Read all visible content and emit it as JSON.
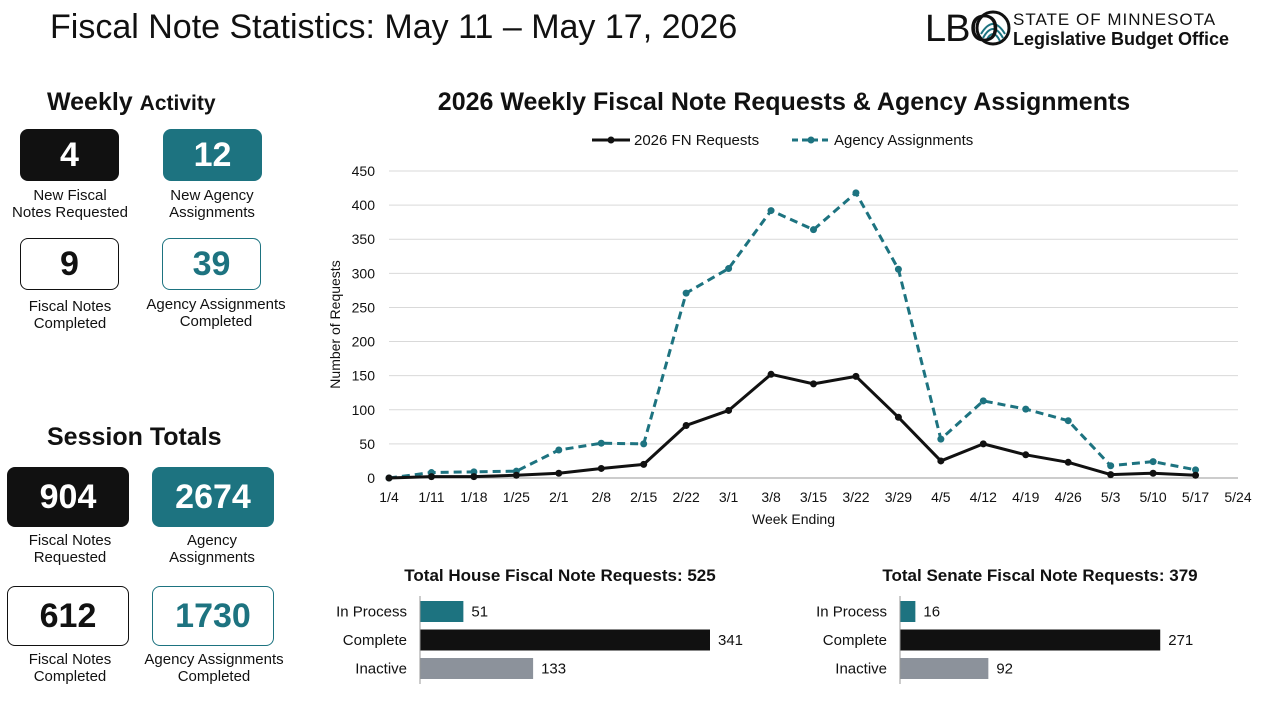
{
  "header": {
    "title": "Fiscal Note Statistics: May 11 – May 17, 2026",
    "logo_mark": "LBO",
    "logo_line1": "STATE OF MINNESOTA",
    "logo_line2": "Legislative Budget Office"
  },
  "weekly": {
    "title_main": "Weekly",
    "title_rest": "Activity",
    "tiles": [
      {
        "value": "4",
        "label": "New Fiscal\nNotes Requested"
      },
      {
        "value": "12",
        "label": "New Agency\nAssignments"
      },
      {
        "value": "9",
        "label": "Fiscal Notes\nCompleted"
      },
      {
        "value": "39",
        "label": "Agency Assignments\nCompleted"
      }
    ]
  },
  "session": {
    "title": "Session Totals",
    "tiles": [
      {
        "value": "904",
        "label": "Fiscal Notes\nRequested"
      },
      {
        "value": "2674",
        "label": "Agency\nAssignments"
      },
      {
        "value": "612",
        "label": "Fiscal Notes\nCompleted"
      },
      {
        "value": "1730",
        "label": "Agency Assignments\nCompleted"
      }
    ]
  },
  "colors": {
    "teal": "#1d7380",
    "black": "#111111",
    "gray": "#8c929b"
  },
  "chart_data": [
    {
      "type": "line",
      "title": "2026 Weekly Fiscal Note Requests & Agency Assignments",
      "xlabel": "Week Ending",
      "ylabel": "Number of Requests",
      "ylim": [
        0,
        450
      ],
      "yticks": [
        0,
        50,
        100,
        150,
        200,
        250,
        300,
        350,
        400,
        450
      ],
      "grid": true,
      "legend_position": "top",
      "x": [
        "1/4",
        "1/11",
        "1/18",
        "1/25",
        "2/1",
        "2/8",
        "2/15",
        "2/22",
        "3/1",
        "3/8",
        "3/15",
        "3/22",
        "3/29",
        "4/5",
        "4/12",
        "4/19",
        "4/26",
        "5/3",
        "5/10",
        "5/17",
        "5/24"
      ],
      "series": [
        {
          "name": "2026 FN Requests",
          "color": "#111111",
          "style": "solid",
          "values": [
            0,
            2,
            2,
            4,
            7,
            14,
            20,
            77,
            99,
            152,
            138,
            149,
            89,
            25,
            50,
            34,
            23,
            5,
            7,
            4,
            null
          ]
        },
        {
          "name": "Agency Assignments",
          "color": "#1d7380",
          "style": "dashed",
          "values": [
            0,
            8,
            9,
            10,
            41,
            51,
            50,
            271,
            307,
            392,
            364,
            418,
            306,
            57,
            113,
            101,
            84,
            18,
            24,
            12,
            null
          ]
        }
      ]
    },
    {
      "type": "bar",
      "orientation": "horizontal",
      "title": "Total House Fiscal Note Requests: 525",
      "categories": [
        "In Process",
        "Complete",
        "Inactive"
      ],
      "values": [
        51,
        341,
        133
      ],
      "colors": [
        "#1d7380",
        "#111111",
        "#8c929b"
      ]
    },
    {
      "type": "bar",
      "orientation": "horizontal",
      "title": "Total Senate Fiscal Note Requests: 379",
      "categories": [
        "In Process",
        "Complete",
        "Inactive"
      ],
      "values": [
        16,
        271,
        92
      ],
      "colors": [
        "#1d7380",
        "#111111",
        "#8c929b"
      ]
    }
  ]
}
